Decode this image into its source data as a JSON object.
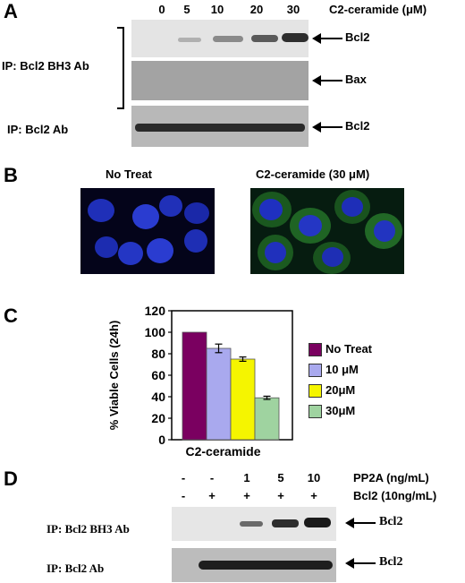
{
  "panel_a": {
    "letter": "A",
    "concentrations": [
      "0",
      "5",
      "10",
      "20",
      "30"
    ],
    "treatment_label": "C2-ceramide (μM)",
    "ip_bh3": "IP: Bcl2 BH3 Ab",
    "ip_bcl2": "IP: Bcl2 Ab",
    "band_bcl2_top": "Bcl2",
    "band_bax": "Bax",
    "band_bcl2_bottom": "Bcl2"
  },
  "panel_b": {
    "letter": "B",
    "label_left": "No Treat",
    "label_right": "C2-ceramide (30 μM)"
  },
  "panel_c": {
    "letter": "C",
    "legend": [
      "No Treat",
      "10 μM",
      "20μM",
      "30μM"
    ]
  },
  "chart_data": {
    "type": "bar",
    "categories": [
      "No Treat",
      "10 μM",
      "20μM",
      "30μM"
    ],
    "values": [
      100,
      85,
      75,
      39
    ],
    "errors": [
      0,
      4,
      2,
      1.5
    ],
    "colors": [
      "#7a0060",
      "#a9a9ee",
      "#f5f500",
      "#9fd3a0"
    ],
    "xlabel": "C2-ceramide",
    "ylabel": "% Viable Cells (24h)",
    "ylim": [
      0,
      120
    ],
    "yticks": [
      0,
      20,
      40,
      60,
      80,
      100,
      120
    ],
    "legend_position": "right"
  },
  "panel_d": {
    "letter": "D",
    "pp2a_values": [
      "-",
      "-",
      "1",
      "5",
      "10"
    ],
    "pp2a_label": "PP2A (ng/mL)",
    "bcl2_values": [
      "-",
      "+",
      "+",
      "+",
      "+"
    ],
    "bcl2_label": "Bcl2 (10ng/mL)",
    "ip_bh3": "IP: Bcl2 BH3 Ab",
    "ip_bcl2": "IP: Bcl2 Ab",
    "band_top": "Bcl2",
    "band_bottom": "Bcl2"
  }
}
